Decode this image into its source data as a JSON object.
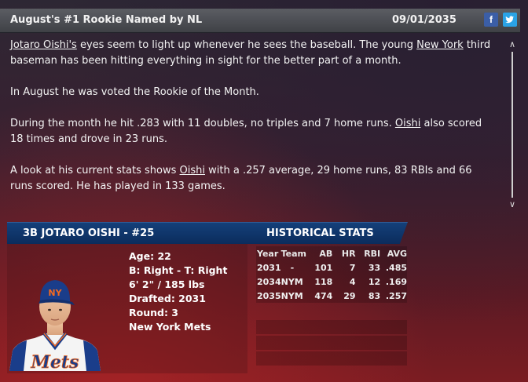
{
  "header": {
    "title": "August's #1 Rookie Named by NL",
    "date": "09/01/2035",
    "facebook_icon": "f",
    "twitter_icon": "t"
  },
  "story": {
    "p1": {
      "player_link": "Jotaro Oishi's",
      "a": " eyes seem to light up whenever he sees the baseball. The young ",
      "team_link": "New York",
      "b": " third baseman has been hitting everything in sight for the better part of a month."
    },
    "p2": "In August he was voted the Rookie of the Month.",
    "p3": {
      "a": "During the month he hit .283 with 11 doubles, no triples and 7 home runs. ",
      "player_link": "Oishi",
      "b": " also scored 18 times and drove in 23 runs."
    },
    "p4": {
      "a": "A look at his current stats shows ",
      "player_link": "Oishi",
      "b": " with a .257 average, 29 home runs, 83 RBIs and 66 runs scored. He has played in 133 games."
    }
  },
  "player": {
    "heading": "3B JOTARO OISHI - #25",
    "age": "Age: 22",
    "bats_throws": "B: Right - T: Right",
    "height_weight": "6' 2\" / 185 lbs",
    "drafted": "Drafted: 2031",
    "round": "Round: 3",
    "team": "New York Mets",
    "cap_logo": "NY",
    "jersey_text": "Mets"
  },
  "historical": {
    "heading": "HISTORICAL STATS",
    "columns": [
      "Year",
      "Team",
      "AB",
      "HR",
      "RBI",
      "AVG"
    ],
    "rows": [
      [
        "2031",
        "-",
        "101",
        "7",
        "33",
        ".485"
      ],
      [
        "2034",
        "NYM",
        "118",
        "4",
        "12",
        ".169"
      ],
      [
        "2035",
        "NYM",
        "474",
        "29",
        "83",
        ".257"
      ]
    ]
  },
  "colors": {
    "header_bar": "#4b4d52",
    "player_bar": "#0e3366",
    "mets_blue": "#1a3d8a",
    "mets_orange": "#f26a21"
  }
}
